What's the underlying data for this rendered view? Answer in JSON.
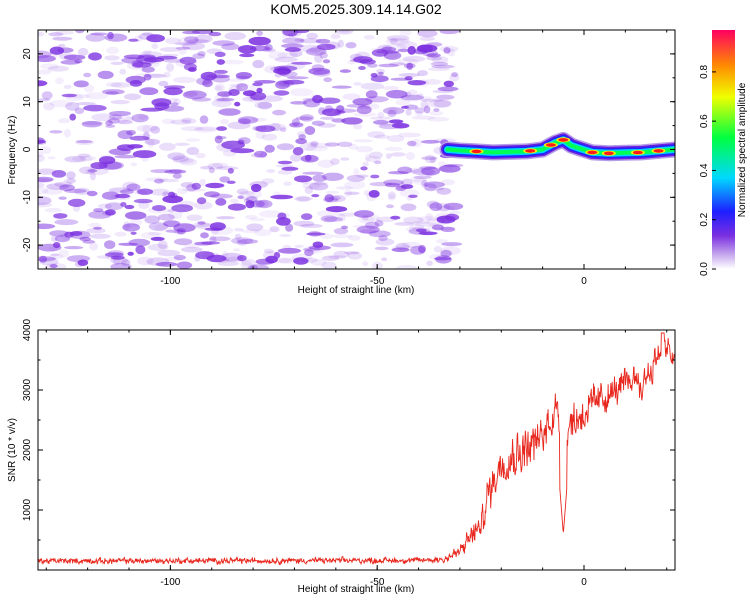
{
  "title": "KOM5.2025.309.14.14.G02",
  "colors": {
    "snr_line": "#e8281e",
    "axis": "#000000",
    "speckle": "#7b2fe0"
  },
  "chart_data": [
    {
      "type": "heatmap",
      "name": "spectrogram",
      "xlabel": "Height of straight line (km)",
      "ylabel": "Frequency (Hz)",
      "xlim": [
        -132,
        22
      ],
      "ylim": [
        -25,
        25
      ],
      "xticks": [
        -100,
        -50,
        0
      ],
      "yticks": [
        -20,
        -10,
        0,
        10,
        20
      ],
      "noise_region_x": [
        -132,
        -31
      ],
      "signal_track": [
        {
          "x": -33,
          "y": 0.0
        },
        {
          "x": -30,
          "y": -0.2
        },
        {
          "x": -26,
          "y": -0.4
        },
        {
          "x": -22,
          "y": -0.6
        },
        {
          "x": -18,
          "y": -0.5
        },
        {
          "x": -14,
          "y": -0.4
        },
        {
          "x": -10,
          "y": 0.0
        },
        {
          "x": -7,
          "y": 1.4
        },
        {
          "x": -5,
          "y": 2.0
        },
        {
          "x": -3,
          "y": 0.8
        },
        {
          "x": -1,
          "y": 0.2
        },
        {
          "x": 2,
          "y": -0.6
        },
        {
          "x": 6,
          "y": -0.8
        },
        {
          "x": 10,
          "y": -0.7
        },
        {
          "x": 14,
          "y": -0.6
        },
        {
          "x": 18,
          "y": -0.3
        },
        {
          "x": 22,
          "y": 0.0
        }
      ],
      "hot_spots": [
        -26,
        -13,
        -8,
        -5,
        2,
        6,
        13,
        18
      ],
      "colorbar": {
        "label": "Normalized spectral amplitude",
        "min": 0.0,
        "max": 0.97,
        "ticks": [
          0.0,
          0.2,
          0.4,
          0.6,
          0.8
        ]
      }
    },
    {
      "type": "line",
      "name": "snr",
      "xlabel": "Height of straight line (km)",
      "ylabel": "SNR (10 * v/v)",
      "xlim": [
        -132,
        22
      ],
      "ylim": [
        0,
        4000
      ],
      "xticks": [
        -100,
        -50,
        0
      ],
      "yticks": [
        1000,
        2000,
        3000,
        4000
      ],
      "envelope": [
        {
          "x": -132,
          "base": 150,
          "amp": 60
        },
        {
          "x": -40,
          "base": 160,
          "amp": 60
        },
        {
          "x": -34,
          "base": 180,
          "amp": 80
        },
        {
          "x": -30,
          "base": 300,
          "amp": 150
        },
        {
          "x": -27,
          "base": 600,
          "amp": 250
        },
        {
          "x": -25,
          "base": 700,
          "amp": 250
        },
        {
          "x": -23,
          "base": 1300,
          "amp": 400
        },
        {
          "x": -20,
          "base": 1800,
          "amp": 400
        },
        {
          "x": -15,
          "base": 2000,
          "amp": 450
        },
        {
          "x": -10,
          "base": 2200,
          "amp": 450
        },
        {
          "x": -7,
          "base": 2700,
          "amp": 400
        },
        {
          "x": -5,
          "base": 2400,
          "amp": 450
        },
        {
          "x": -2,
          "base": 2500,
          "amp": 400
        },
        {
          "x": 3,
          "base": 2800,
          "amp": 350
        },
        {
          "x": 8,
          "base": 3000,
          "amp": 300
        },
        {
          "x": 12,
          "base": 3200,
          "amp": 300
        },
        {
          "x": 16,
          "base": 3300,
          "amp": 350
        },
        {
          "x": 19,
          "base": 3750,
          "amp": 300
        },
        {
          "x": 22,
          "base": 3500,
          "amp": 250
        }
      ],
      "dips": [
        {
          "x": -5,
          "y": 600
        },
        {
          "x": 14,
          "y": 2800
        }
      ],
      "peak": {
        "x": 19,
        "y": 4000
      }
    }
  ]
}
